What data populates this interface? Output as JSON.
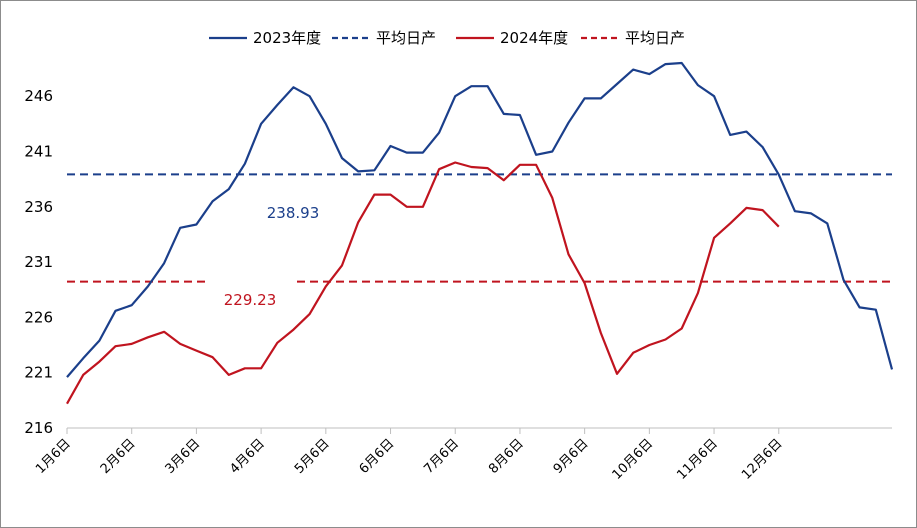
{
  "chart_data": {
    "type": "line",
    "legend_position": "top",
    "grid": false,
    "ylim": [
      216,
      249
    ],
    "yticks": [
      216,
      221,
      226,
      231,
      236,
      241,
      246
    ],
    "x_count": 52,
    "x_tick_labels": [
      {
        "label": "1月6日",
        "index": 0
      },
      {
        "label": "2月6日",
        "index": 4
      },
      {
        "label": "3月6日",
        "index": 8
      },
      {
        "label": "4月6日",
        "index": 12
      },
      {
        "label": "5月6日",
        "index": 16
      },
      {
        "label": "6月6日",
        "index": 20
      },
      {
        "label": "7月6日",
        "index": 24
      },
      {
        "label": "8月6日",
        "index": 28
      },
      {
        "label": "9月6日",
        "index": 32
      },
      {
        "label": "10月6日",
        "index": 36
      },
      {
        "label": "11月6日",
        "index": 40
      },
      {
        "label": "12月6日",
        "index": 44
      }
    ],
    "series": [
      {
        "name": "2023年度",
        "color": "#1b3f8b",
        "style": "solid",
        "values": [
          220.6,
          222.3,
          223.9,
          226.6,
          227.1,
          228.8,
          230.9,
          234.1,
          234.4,
          236.5,
          237.6,
          239.9,
          243.5,
          245.2,
          246.8,
          246.0,
          243.5,
          240.4,
          239.2,
          239.3,
          241.5,
          240.9,
          240.9,
          242.7,
          246.0,
          246.9,
          246.9,
          244.4,
          244.3,
          240.7,
          241.0,
          243.6,
          245.8,
          245.8,
          247.1,
          248.4,
          248.0,
          248.9,
          249.0,
          247.0,
          246.0,
          242.5,
          242.8,
          241.4,
          238.9,
          235.6,
          235.4,
          234.5,
          229.4,
          226.9,
          226.7,
          221.3
        ]
      },
      {
        "name": "平均日产",
        "color": "#1b3f8b",
        "style": "dashed",
        "value": 238.93,
        "label": "238.93"
      },
      {
        "name": "2024年度",
        "color": "#c0141f",
        "style": "solid",
        "values": [
          218.2,
          220.8,
          222.0,
          223.4,
          223.6,
          224.2,
          224.7,
          223.6,
          223.0,
          222.4,
          220.8,
          221.4,
          221.4,
          223.7,
          224.9,
          226.3,
          228.8,
          230.7,
          234.6,
          237.1,
          237.1,
          236.0,
          236.0,
          239.4,
          240.0,
          239.6,
          239.5,
          238.4,
          239.8,
          239.8,
          236.8,
          231.7,
          229.1,
          224.6,
          220.9,
          222.8,
          223.5,
          224.0,
          225.0,
          228.2,
          233.2,
          234.5,
          235.9,
          235.7,
          234.2
        ]
      },
      {
        "name": "平均日产",
        "color": "#c0141f",
        "style": "dashed",
        "value": 229.23,
        "label": "229.23"
      }
    ]
  }
}
